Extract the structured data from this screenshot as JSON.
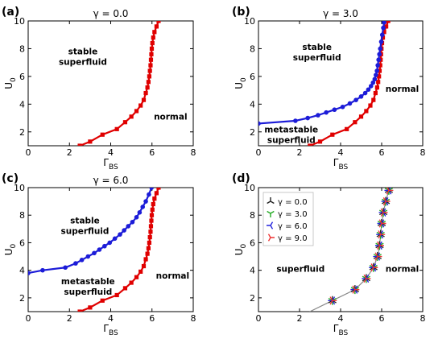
{
  "chart_data": [
    {
      "panel": "(a)",
      "title": "γ = 0.0",
      "type": "line",
      "xlabel": "Γ_BS",
      "ylabel": "U_0",
      "xlim": [
        0,
        8
      ],
      "ylim": [
        1,
        10
      ],
      "xticks": [
        0,
        2,
        4,
        6,
        8
      ],
      "yticks": [
        2,
        4,
        6,
        8,
        10
      ],
      "grid": false,
      "series": [
        {
          "color": "#e00000",
          "marker": "square",
          "x": [
            2.5,
            3.0,
            3.6,
            4.3,
            4.7,
            5.0,
            5.25,
            5.45,
            5.6,
            5.7,
            5.78,
            5.83,
            5.87,
            5.9,
            5.93,
            5.95,
            5.97,
            5.99,
            6.02,
            6.06,
            6.12,
            6.22,
            6.32
          ],
          "y": [
            1.0,
            1.3,
            1.8,
            2.2,
            2.7,
            3.1,
            3.5,
            3.9,
            4.3,
            4.8,
            5.2,
            5.6,
            6.0,
            6.4,
            6.8,
            7.2,
            7.6,
            8.0,
            8.4,
            8.8,
            9.2,
            9.6,
            10.0
          ]
        }
      ],
      "regions": [
        {
          "lines": [
            "stable",
            "superfluid"
          ],
          "x": 2.65,
          "y": 7.6
        },
        {
          "lines": [
            "normal"
          ],
          "x": 6.9,
          "y": 2.9
        }
      ]
    },
    {
      "panel": "(b)",
      "title": "γ = 3.0",
      "type": "line",
      "xlabel": "Γ_BS",
      "ylabel": "U_0",
      "xlim": [
        0,
        8
      ],
      "ylim": [
        1,
        10
      ],
      "xticks": [
        0,
        2,
        4,
        6,
        8
      ],
      "yticks": [
        2,
        4,
        6,
        8,
        10
      ],
      "grid": false,
      "series": [
        {
          "color": "#e00000",
          "marker": "square",
          "x": [
            2.5,
            3.0,
            3.6,
            4.3,
            4.7,
            5.0,
            5.25,
            5.45,
            5.6,
            5.7,
            5.78,
            5.83,
            5.87,
            5.9,
            5.93,
            5.95,
            5.97,
            5.99,
            6.02,
            6.06,
            6.12,
            6.22,
            6.32
          ],
          "y": [
            1.0,
            1.3,
            1.8,
            2.2,
            2.7,
            3.1,
            3.5,
            3.9,
            4.3,
            4.8,
            5.2,
            5.6,
            6.0,
            6.4,
            6.8,
            7.2,
            7.6,
            8.0,
            8.4,
            8.8,
            9.2,
            9.6,
            10.0
          ]
        },
        {
          "color": "#1c1cd8",
          "marker": "circle",
          "x": [
            0.0,
            1.8,
            2.4,
            2.9,
            3.3,
            3.7,
            4.1,
            4.45,
            4.75,
            5.0,
            5.2,
            5.35,
            5.48,
            5.58,
            5.66,
            5.72,
            5.77,
            5.81,
            5.85,
            5.89,
            5.93,
            5.98,
            6.03,
            6.08,
            6.12
          ],
          "y": [
            2.6,
            2.8,
            3.0,
            3.2,
            3.4,
            3.6,
            3.8,
            4.05,
            4.3,
            4.55,
            4.8,
            5.05,
            5.3,
            5.55,
            5.8,
            6.1,
            6.4,
            6.8,
            7.2,
            7.6,
            8.0,
            8.5,
            9.0,
            9.5,
            9.9
          ]
        }
      ],
      "regions": [
        {
          "lines": [
            "stable",
            "superfluid"
          ],
          "x": 2.85,
          "y": 7.9
        },
        {
          "lines": [
            "normal"
          ],
          "x": 7.0,
          "y": 4.9
        },
        {
          "lines": [
            "metastable",
            "superfluid"
          ],
          "x": 1.6,
          "y": 1.95
        }
      ]
    },
    {
      "panel": "(c)",
      "title": "γ = 6.0",
      "type": "line",
      "xlabel": "Γ_BS",
      "ylabel": "U_0",
      "xlim": [
        0,
        8
      ],
      "ylim": [
        1,
        10
      ],
      "xticks": [
        0,
        2,
        4,
        6,
        8
      ],
      "yticks": [
        2,
        4,
        6,
        8,
        10
      ],
      "grid": false,
      "series": [
        {
          "color": "#e00000",
          "marker": "square",
          "x": [
            2.5,
            3.0,
            3.6,
            4.3,
            4.7,
            5.0,
            5.25,
            5.45,
            5.6,
            5.7,
            5.78,
            5.83,
            5.87,
            5.9,
            5.93,
            5.95,
            5.97,
            5.99,
            6.02,
            6.06,
            6.12,
            6.22,
            6.32
          ],
          "y": [
            1.0,
            1.3,
            1.8,
            2.2,
            2.7,
            3.1,
            3.5,
            3.9,
            4.3,
            4.8,
            5.2,
            5.6,
            6.0,
            6.4,
            6.8,
            7.2,
            7.6,
            8.0,
            8.4,
            8.8,
            9.2,
            9.6,
            10.0
          ]
        },
        {
          "color": "#1c1cd8",
          "marker": "circle",
          "x": [
            0.0,
            0.7,
            1.8,
            2.3,
            2.6,
            2.9,
            3.2,
            3.45,
            3.7,
            3.95,
            4.2,
            4.45,
            4.65,
            4.85,
            5.05,
            5.25,
            5.4,
            5.55,
            5.7,
            5.85,
            5.98
          ],
          "y": [
            3.8,
            4.0,
            4.2,
            4.5,
            4.75,
            5.0,
            5.25,
            5.5,
            5.75,
            6.0,
            6.3,
            6.6,
            6.9,
            7.2,
            7.5,
            7.85,
            8.2,
            8.6,
            9.0,
            9.5,
            10.0
          ]
        }
      ],
      "regions": [
        {
          "lines": [
            "stable",
            "superfluid"
          ],
          "x": 2.75,
          "y": 7.4
        },
        {
          "lines": [
            "metastable",
            "superfluid"
          ],
          "x": 2.9,
          "y": 3.0
        },
        {
          "lines": [
            "normal"
          ],
          "x": 7.0,
          "y": 3.4
        }
      ]
    },
    {
      "panel": "(d)",
      "title": "",
      "type": "scatter",
      "xlabel": "Γ_BS",
      "ylabel": "U_0",
      "xlim": [
        0,
        8
      ],
      "ylim": [
        1,
        10
      ],
      "xticks": [
        0,
        2,
        4,
        6,
        8
      ],
      "yticks": [
        2,
        4,
        6,
        8,
        10
      ],
      "grid": false,
      "guide_line": {
        "color": "#888888",
        "x": [
          2.5,
          3.6,
          4.7,
          5.25,
          5.6,
          5.8,
          5.9,
          5.95,
          6.0,
          6.08,
          6.2,
          6.35
        ],
        "y": [
          1.0,
          1.8,
          2.6,
          3.4,
          4.2,
          5.0,
          5.8,
          6.6,
          7.4,
          8.2,
          9.0,
          9.8
        ]
      },
      "points": {
        "x": [
          3.6,
          4.7,
          5.25,
          5.6,
          5.8,
          5.9,
          5.95,
          6.0,
          6.08,
          6.2,
          6.35
        ],
        "y": [
          1.8,
          2.6,
          3.4,
          4.2,
          5.0,
          5.8,
          6.6,
          7.4,
          8.2,
          9.0,
          9.8
        ]
      },
      "series": [
        {
          "name": "γ = 0.0",
          "color": "#222222",
          "angle": 90
        },
        {
          "name": "γ = 3.0",
          "color": "#22aa22",
          "angle": 30
        },
        {
          "name": "γ = 6.0",
          "color": "#2222dd",
          "angle": 60
        },
        {
          "name": "γ = 9.0",
          "color": "#ee3333",
          "angle": 0
        }
      ],
      "legend_position": "top-left",
      "regions": [
        {
          "lines": [
            "superfluid"
          ],
          "x": 2.05,
          "y": 3.9
        },
        {
          "lines": [
            "normal"
          ],
          "x": 7.0,
          "y": 3.9
        }
      ]
    }
  ]
}
